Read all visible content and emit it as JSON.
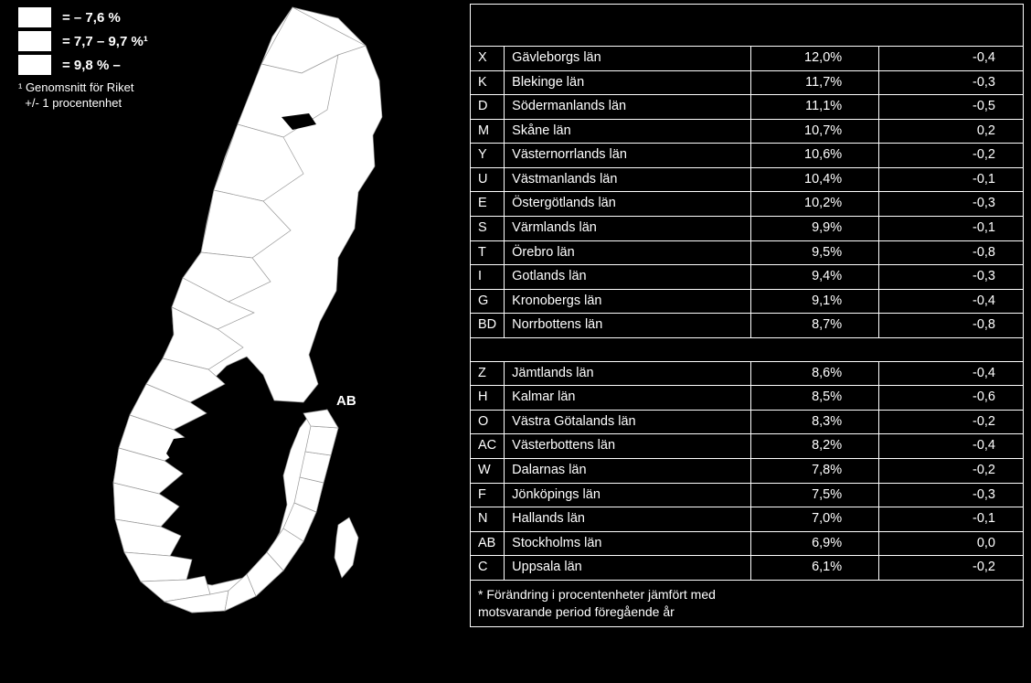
{
  "legend": {
    "rows": [
      {
        "label": "= – 7,6 %"
      },
      {
        "label": "= 7,7 – 9,7 %¹"
      },
      {
        "label": "= 9,8 % –"
      }
    ],
    "note_line1": "¹ Genomsnitt för Riket",
    "note_line2": "+/- 1 procentenhet",
    "swatch_color": "#ffffff"
  },
  "map": {
    "ab_label": "AB",
    "fill": "#ffffff",
    "stroke": "#000000"
  },
  "table": {
    "group1": [
      {
        "code": "X",
        "name": "Gävleborgs län",
        "pct": "12,0%",
        "chg": "-0,4"
      },
      {
        "code": "K",
        "name": "Blekinge län",
        "pct": "11,7%",
        "chg": "-0,3"
      },
      {
        "code": "D",
        "name": "Södermanlands län",
        "pct": "11,1%",
        "chg": "-0,5"
      },
      {
        "code": "M",
        "name": "Skåne län",
        "pct": "10,7%",
        "chg": "0,2"
      },
      {
        "code": "Y",
        "name": "Västernorrlands län",
        "pct": "10,6%",
        "chg": "-0,2"
      },
      {
        "code": "U",
        "name": "Västmanlands län",
        "pct": "10,4%",
        "chg": "-0,1"
      },
      {
        "code": "E",
        "name": "Östergötlands län",
        "pct": "10,2%",
        "chg": "-0,3"
      },
      {
        "code": "S",
        "name": "Värmlands län",
        "pct": "9,9%",
        "chg": "-0,1"
      },
      {
        "code": "T",
        "name": "Örebro län",
        "pct": "9,5%",
        "chg": "-0,8"
      },
      {
        "code": "I",
        "name": "Gotlands län",
        "pct": "9,4%",
        "chg": "-0,3"
      },
      {
        "code": "G",
        "name": "Kronobergs län",
        "pct": "9,1%",
        "chg": "-0,4"
      },
      {
        "code": "BD",
        "name": "Norrbottens län",
        "pct": "8,7%",
        "chg": "-0,8"
      }
    ],
    "group2": [
      {
        "code": "Z",
        "name": "Jämtlands län",
        "pct": "8,6%",
        "chg": "-0,4"
      },
      {
        "code": "H",
        "name": "Kalmar län",
        "pct": "8,5%",
        "chg": "-0,6"
      },
      {
        "code": "O",
        "name": "Västra Götalands län",
        "pct": "8,3%",
        "chg": "-0,2"
      },
      {
        "code": "AC",
        "name": "Västerbottens län",
        "pct": "8,2%",
        "chg": "-0,4"
      },
      {
        "code": "W",
        "name": "Dalarnas län",
        "pct": "7,8%",
        "chg": "-0,2"
      },
      {
        "code": "F",
        "name": "Jönköpings län",
        "pct": "7,5%",
        "chg": "-0,3"
      },
      {
        "code": "N",
        "name": "Hallands län",
        "pct": "7,0%",
        "chg": "-0,1"
      },
      {
        "code": "AB",
        "name": "Stockholms län",
        "pct": "6,9%",
        "chg": "0,0"
      },
      {
        "code": "C",
        "name": "Uppsala län",
        "pct": "6,1%",
        "chg": "-0,2"
      }
    ],
    "footnote_line1": "* Förändring i procentenheter jämfört med",
    "footnote_line2": "motsvarande period föregående år"
  },
  "colors": {
    "background": "#000000",
    "text": "#ffffff",
    "border": "#ffffff"
  }
}
